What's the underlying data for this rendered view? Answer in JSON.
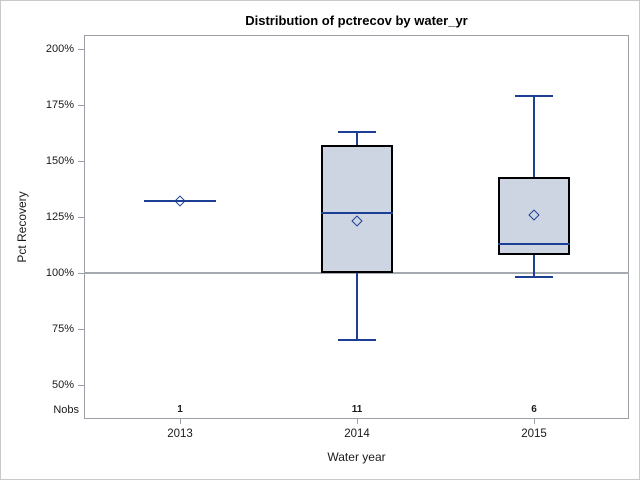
{
  "figure": {
    "title": "Distribution of pctrecov by water_yr",
    "y_axis_label": "Pct Recovery",
    "x_axis_label": "Water year",
    "nobs_label": "Nobs"
  },
  "colors": {
    "box_fill": "#cdd5e3",
    "box_border": "#000000",
    "series_blue": "#1c3f94",
    "frame_gray": "#9aa0a6",
    "reference_line": "#a4aaaf",
    "text": "#1a1a1a",
    "page_border": "#c6cacd"
  },
  "chart_data": {
    "type": "box",
    "title": "Distribution of pctrecov by water_yr",
    "xlabel": "Water year",
    "ylabel": "Pct Recovery",
    "categories": [
      "2013",
      "2014",
      "2015"
    ],
    "nobs": [
      "1",
      "11",
      "6"
    ],
    "y_ticks": [
      {
        "value": 200,
        "label": "200%"
      },
      {
        "value": 175,
        "label": "175%"
      },
      {
        "value": 150,
        "label": "150%"
      },
      {
        "value": 125,
        "label": "125%"
      },
      {
        "value": 100,
        "label": "100%"
      },
      {
        "value": 75,
        "label": "75%"
      },
      {
        "value": 50,
        "label": "50%"
      }
    ],
    "ylim": [
      50,
      200
    ],
    "y_unit": "percent",
    "reference_line_value": 100,
    "grid": false,
    "legend": false,
    "series": [
      {
        "category": "2013",
        "n": 1,
        "whisker_low": 132,
        "q1": 132,
        "median": 132,
        "q3": 132,
        "whisker_high": 132,
        "mean": 132
      },
      {
        "category": "2014",
        "n": 11,
        "whisker_low": 70,
        "q1": 100,
        "median": 127,
        "q3": 157,
        "whisker_high": 163,
        "mean": 123
      },
      {
        "category": "2015",
        "n": 6,
        "whisker_low": 98,
        "q1": 108,
        "median": 113,
        "q3": 143,
        "whisker_high": 179,
        "mean": 126
      }
    ]
  }
}
